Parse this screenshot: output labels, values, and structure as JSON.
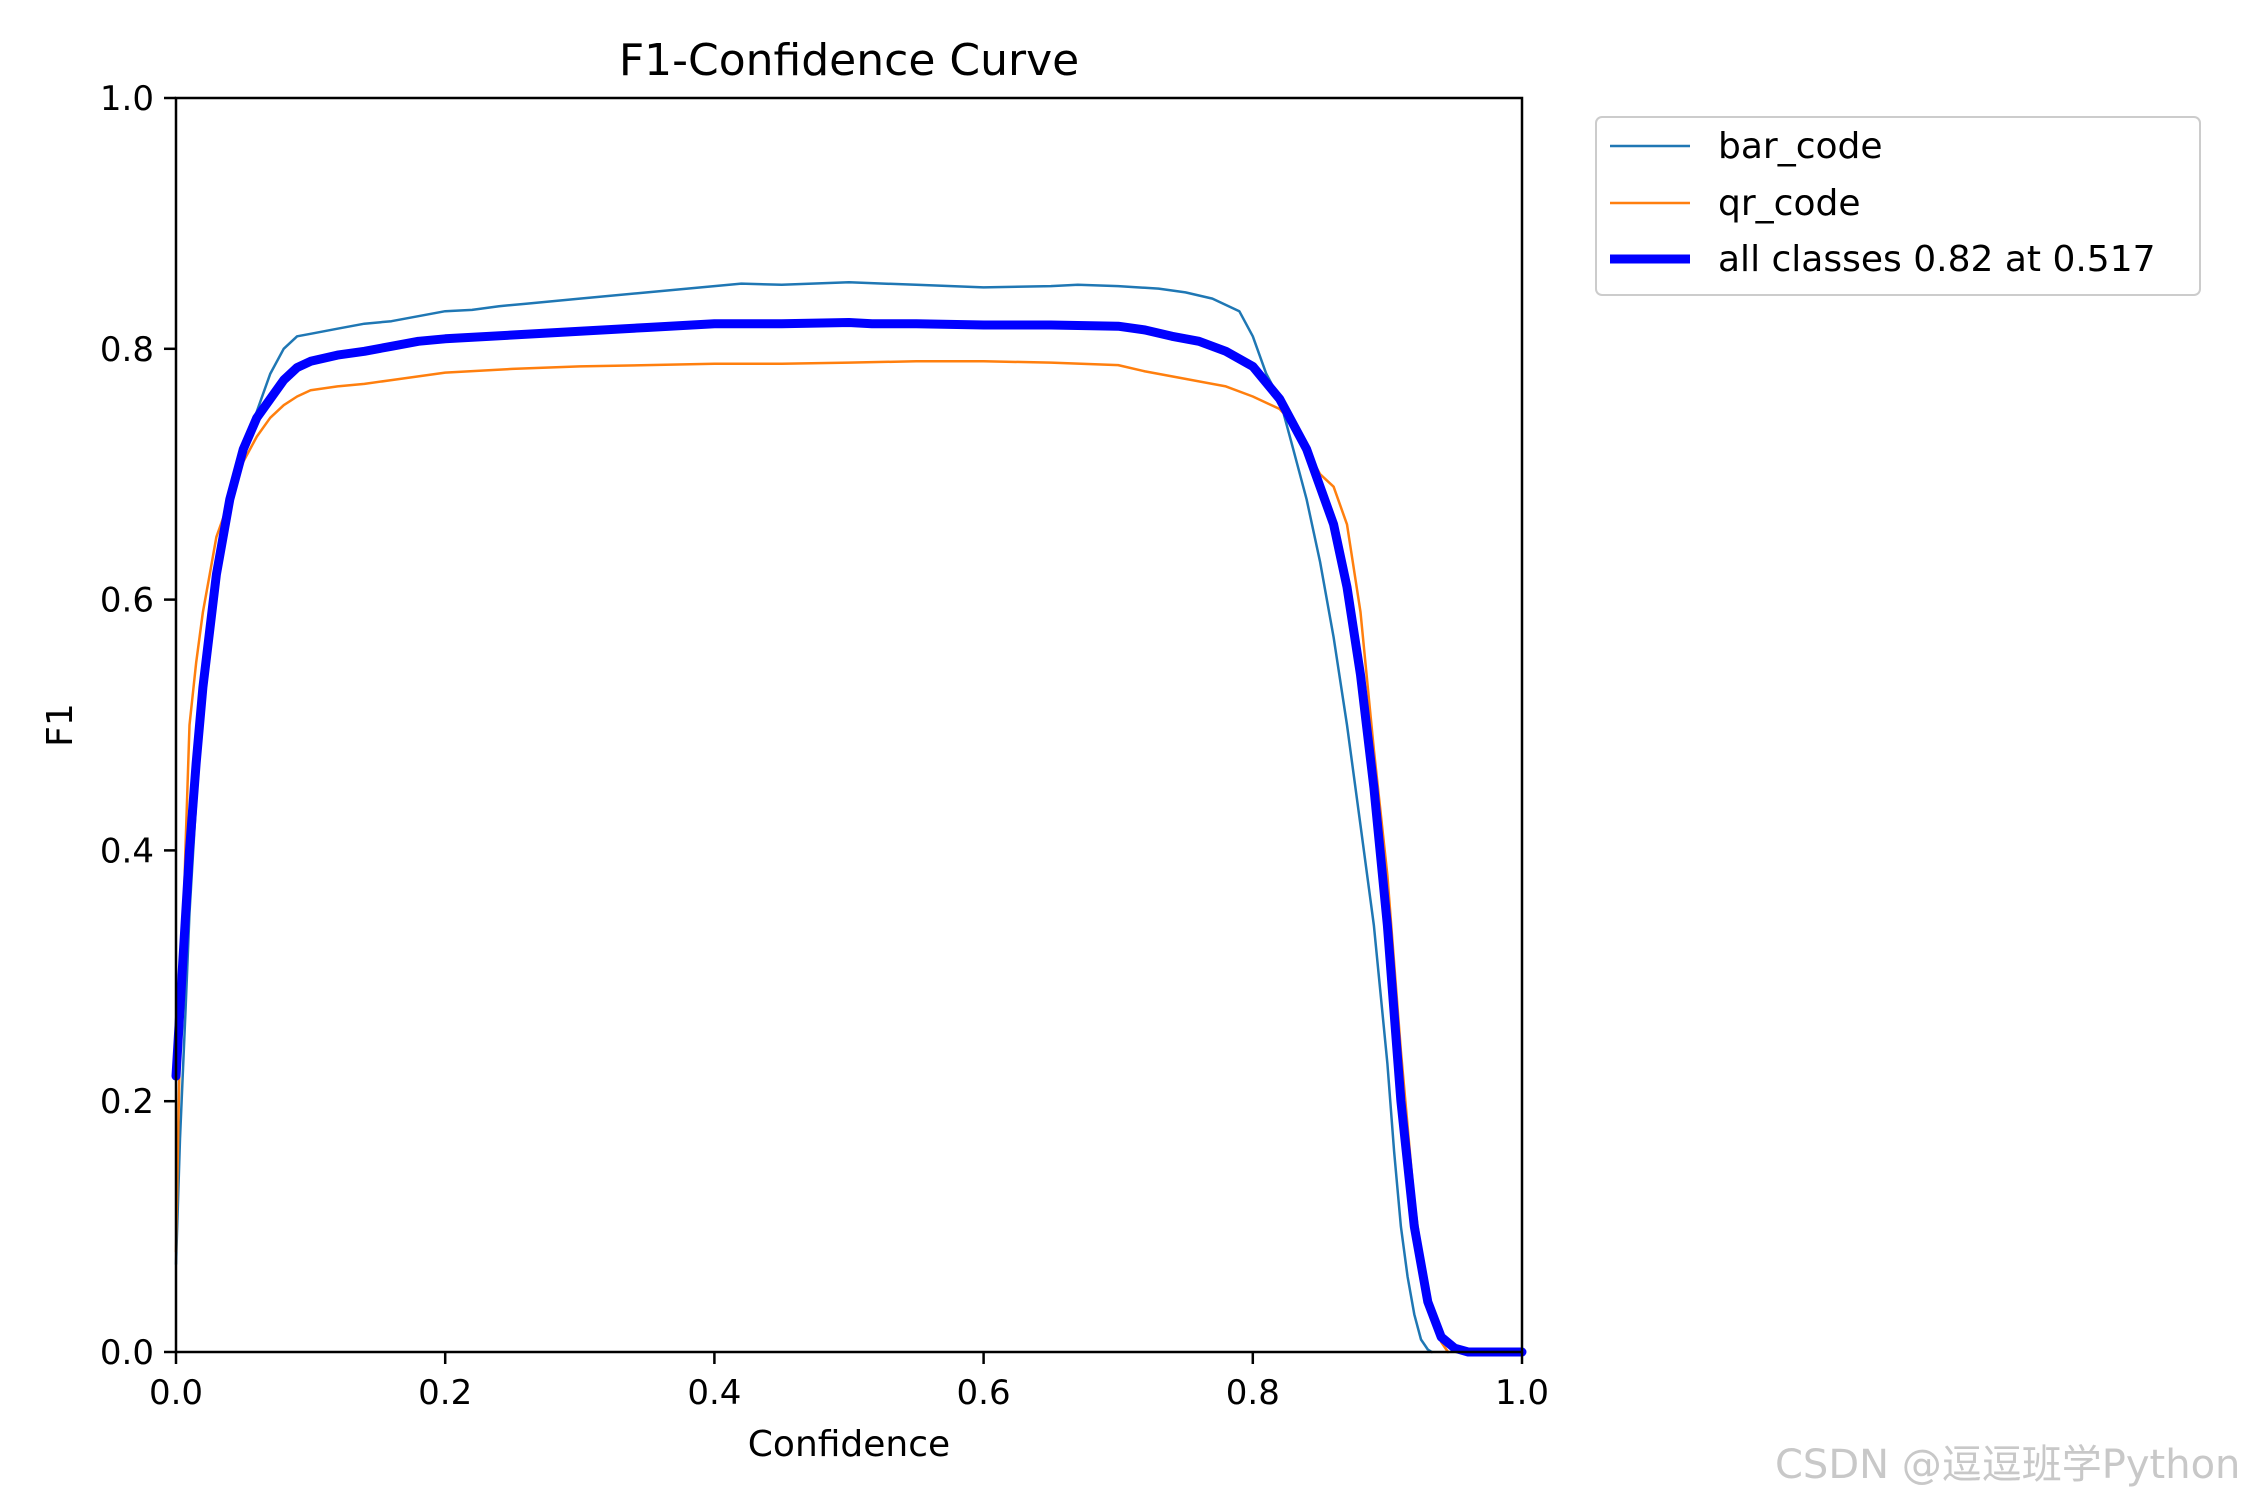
{
  "chart_data": {
    "type": "line",
    "title": "F1-Confidence Curve",
    "xlabel": "Confidence",
    "ylabel": "F1",
    "xlim": [
      0.0,
      1.0
    ],
    "ylim": [
      0.0,
      1.0
    ],
    "xticks": [
      "0.0",
      "0.2",
      "0.4",
      "0.6",
      "0.8",
      "1.0"
    ],
    "yticks": [
      "0.0",
      "0.2",
      "0.4",
      "0.6",
      "0.8",
      "1.0"
    ],
    "grid": false,
    "legend_position": "outside-top-right",
    "series": [
      {
        "name": "bar_code",
        "color": "#1f77b4",
        "x": [
          0.0,
          0.003,
          0.007,
          0.01,
          0.015,
          0.02,
          0.03,
          0.04,
          0.05,
          0.06,
          0.07,
          0.08,
          0.09,
          0.1,
          0.12,
          0.14,
          0.16,
          0.18,
          0.2,
          0.22,
          0.24,
          0.26,
          0.3,
          0.35,
          0.4,
          0.42,
          0.45,
          0.5,
          0.55,
          0.6,
          0.65,
          0.67,
          0.7,
          0.73,
          0.75,
          0.77,
          0.79,
          0.8,
          0.81,
          0.82,
          0.83,
          0.84,
          0.85,
          0.86,
          0.87,
          0.88,
          0.89,
          0.9,
          0.905,
          0.91,
          0.915,
          0.92,
          0.925,
          0.93,
          0.933
        ],
        "y": [
          0.07,
          0.17,
          0.27,
          0.35,
          0.44,
          0.51,
          0.61,
          0.68,
          0.72,
          0.75,
          0.78,
          0.8,
          0.81,
          0.812,
          0.816,
          0.82,
          0.822,
          0.826,
          0.83,
          0.831,
          0.834,
          0.836,
          0.84,
          0.845,
          0.85,
          0.852,
          0.851,
          0.853,
          0.851,
          0.849,
          0.85,
          0.851,
          0.85,
          0.848,
          0.845,
          0.84,
          0.83,
          0.81,
          0.78,
          0.76,
          0.72,
          0.68,
          0.63,
          0.57,
          0.5,
          0.42,
          0.34,
          0.23,
          0.16,
          0.1,
          0.06,
          0.03,
          0.01,
          0.002,
          0.0
        ]
      },
      {
        "name": "qr_code",
        "color": "#ff7f0e",
        "x": [
          0.0,
          0.003,
          0.007,
          0.01,
          0.015,
          0.02,
          0.025,
          0.03,
          0.04,
          0.05,
          0.06,
          0.07,
          0.08,
          0.09,
          0.1,
          0.12,
          0.14,
          0.16,
          0.18,
          0.2,
          0.25,
          0.3,
          0.35,
          0.4,
          0.45,
          0.5,
          0.55,
          0.6,
          0.65,
          0.7,
          0.72,
          0.75,
          0.78,
          0.8,
          0.82,
          0.83,
          0.84,
          0.85,
          0.86,
          0.87,
          0.88,
          0.89,
          0.9,
          0.91,
          0.92,
          0.93,
          0.94,
          0.945
        ],
        "y": [
          0.08,
          0.25,
          0.4,
          0.5,
          0.55,
          0.59,
          0.62,
          0.65,
          0.68,
          0.71,
          0.73,
          0.745,
          0.755,
          0.762,
          0.767,
          0.77,
          0.772,
          0.775,
          0.778,
          0.781,
          0.784,
          0.786,
          0.787,
          0.788,
          0.788,
          0.789,
          0.79,
          0.79,
          0.789,
          0.787,
          0.782,
          0.776,
          0.77,
          0.762,
          0.752,
          0.74,
          0.72,
          0.7,
          0.69,
          0.66,
          0.59,
          0.48,
          0.38,
          0.24,
          0.12,
          0.04,
          0.008,
          0.0
        ]
      },
      {
        "name": "all classes 0.82 at 0.517",
        "color": "#0000ff",
        "x": [
          0.0,
          0.005,
          0.01,
          0.015,
          0.02,
          0.03,
          0.04,
          0.05,
          0.06,
          0.07,
          0.08,
          0.09,
          0.1,
          0.12,
          0.14,
          0.16,
          0.18,
          0.2,
          0.25,
          0.3,
          0.35,
          0.4,
          0.45,
          0.5,
          0.517,
          0.55,
          0.6,
          0.65,
          0.7,
          0.72,
          0.74,
          0.76,
          0.78,
          0.8,
          0.82,
          0.84,
          0.86,
          0.87,
          0.88,
          0.89,
          0.9,
          0.91,
          0.92,
          0.93,
          0.94,
          0.95,
          0.96,
          1.0
        ],
        "y": [
          0.22,
          0.31,
          0.4,
          0.47,
          0.53,
          0.62,
          0.68,
          0.72,
          0.745,
          0.76,
          0.775,
          0.785,
          0.79,
          0.795,
          0.798,
          0.802,
          0.806,
          0.808,
          0.811,
          0.814,
          0.817,
          0.82,
          0.82,
          0.821,
          0.82,
          0.82,
          0.819,
          0.819,
          0.818,
          0.815,
          0.81,
          0.806,
          0.798,
          0.786,
          0.76,
          0.72,
          0.66,
          0.61,
          0.54,
          0.45,
          0.34,
          0.2,
          0.1,
          0.04,
          0.012,
          0.003,
          0.0,
          0.0
        ]
      }
    ]
  },
  "watermark": "CSDN @逗逗班学Python"
}
